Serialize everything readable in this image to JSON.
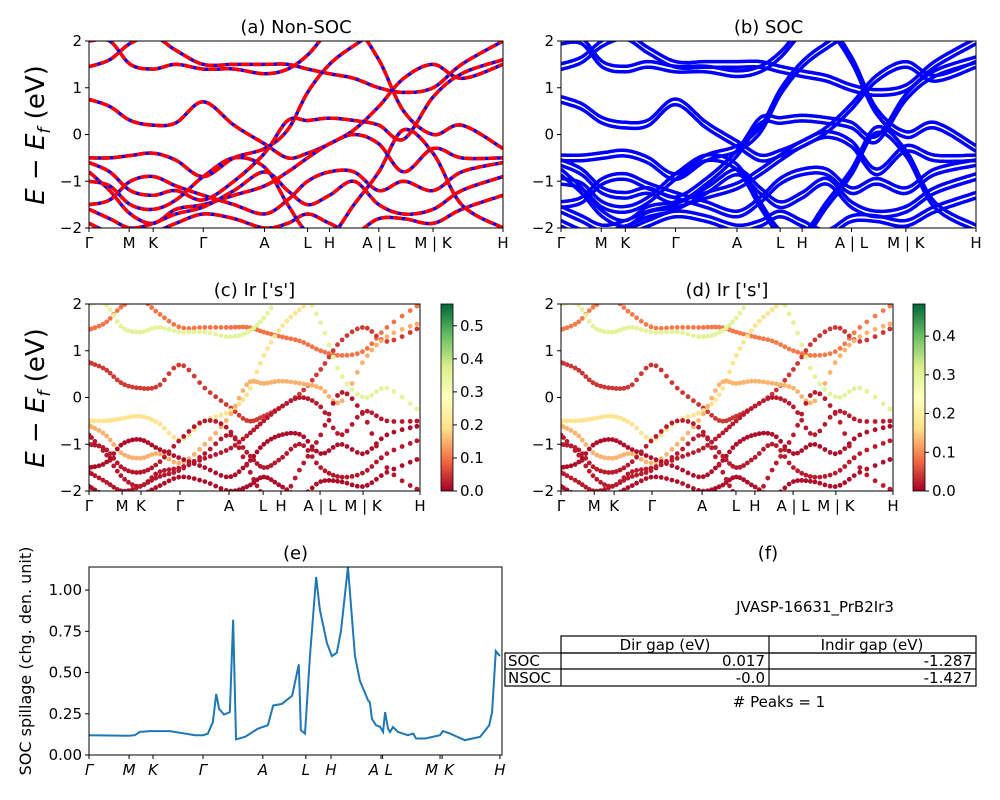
{
  "figure": {
    "ylabel_band": {
      "E": "E",
      "minus": " − ",
      "Ef": "E",
      "f": "f",
      "unit": " (eV)"
    },
    "ylabel_spillage": "SOC spillage (chg. den. unit)"
  },
  "colors": {
    "non_soc_solid": "#0000ff",
    "non_soc_dash": "#ff0000",
    "soc": "#0000ff",
    "spillage": "#1f77b4",
    "colormap": [
      "#a50026",
      "#f46d43",
      "#fee08b",
      "#ffffbf",
      "#d9ef8b",
      "#66bd63",
      "#006837"
    ]
  },
  "chart_data": [
    {
      "type": "line",
      "title": "(a) Non-SOC",
      "ylim": [
        -2,
        2
      ],
      "yticks": [
        "2",
        "1",
        "0",
        "−1",
        "−2"
      ],
      "ytick_values": [
        2,
        1,
        0,
        -1,
        -2
      ],
      "xticks": [
        "Γ",
        "M",
        "K",
        "Γ",
        "A",
        "L",
        "H",
        "A | L",
        "M | K",
        "H"
      ],
      "xtick_positions": [
        0,
        0.097,
        0.155,
        0.276,
        0.424,
        0.528,
        0.581,
        0.7,
        0.831,
        1.0
      ],
      "k": [
        0,
        0.05,
        0.1,
        0.155,
        0.21,
        0.276,
        0.35,
        0.424,
        0.48,
        0.528,
        0.581,
        0.64,
        0.7,
        0.76,
        0.831,
        0.9,
        1.0
      ],
      "series": [
        {
          "values": [
            1.45,
            1.6,
            1.95,
            2.1,
            1.8,
            1.5,
            1.5,
            1.5,
            1.5,
            1.4,
            1.3,
            1.2,
            1.0,
            0.9,
            1.0,
            1.5,
            2.0
          ]
        },
        {
          "values": [
            0.75,
            0.6,
            0.3,
            0.2,
            0.25,
            0.7,
            0.2,
            -0.2,
            -0.5,
            -0.4,
            -0.2,
            0.1,
            0.6,
            1.2,
            1.5,
            1.2,
            1.5
          ]
        },
        {
          "values": [
            -0.5,
            -0.5,
            -0.45,
            -0.4,
            -0.55,
            -0.9,
            -0.5,
            -0.3,
            0.1,
            0.9,
            1.5,
            1.9,
            2.2,
            2.2,
            2.2,
            2.2,
            2.2
          ]
        },
        {
          "values": [
            -0.6,
            -0.8,
            -1.2,
            -1.3,
            -1.2,
            -1.4,
            -1.0,
            -0.4,
            0.3,
            0.3,
            0.35,
            0.3,
            0.2,
            -0.1,
            0.8,
            1.3,
            1.6
          ]
        },
        {
          "values": [
            -0.8,
            -1.2,
            -1.7,
            -1.9,
            -1.6,
            -1.5,
            -1.3,
            -1.1,
            -0.8,
            -0.5,
            -0.2,
            0.0,
            -0.2,
            -0.8,
            -0.3,
            -0.5,
            -0.5
          ]
        },
        {
          "values": [
            -1.5,
            -1.4,
            -1.0,
            -0.9,
            -1.1,
            -1.3,
            -1.5,
            -1.7,
            -1.4,
            -1.0,
            -0.8,
            -0.8,
            -1.2,
            -1.0,
            -1.2,
            -0.8,
            -0.6
          ]
        },
        {
          "values": [
            -1.6,
            -1.8,
            -2.0,
            -1.9,
            -1.7,
            -1.55,
            -1.2,
            -0.8,
            -1.2,
            -1.5,
            -1.3,
            -1.0,
            -1.5,
            -1.7,
            -1.6,
            -1.2,
            -0.9
          ]
        },
        {
          "values": [
            -1.9,
            -2.1,
            -2.2,
            -2.1,
            -1.9,
            -1.7,
            -1.8,
            -2.0,
            -1.9,
            -1.7,
            -1.9,
            -2.1,
            -1.8,
            -1.8,
            -1.9,
            -1.6,
            -1.3
          ]
        },
        {
          "values": [
            2.0,
            2.0,
            1.5,
            1.4,
            1.5,
            1.4,
            1.4,
            1.3,
            1.4,
            1.7,
            2.2,
            2.3,
            1.6,
            0.5,
            0.0,
            0.2,
            -0.3
          ]
        },
        {
          "values": [
            -1.0,
            -1.1,
            -1.5,
            -1.6,
            -1.4,
            -0.9,
            -0.5,
            -0.7,
            -1.5,
            -2.1,
            -2.2,
            -1.5,
            -0.8,
            0.1,
            -0.4,
            -1.5,
            -2.0
          ]
        }
      ]
    },
    {
      "type": "line",
      "title": "(b) SOC",
      "ylim": [
        -2,
        2
      ],
      "yticks": [
        "2",
        "1",
        "0",
        "−1",
        "−2"
      ],
      "ytick_values": [
        2,
        1,
        0,
        -1,
        -2
      ],
      "xticks": [
        "Γ",
        "M",
        "K",
        "Γ",
        "A",
        "L",
        "H",
        "A | L",
        "M | K",
        "H"
      ],
      "xtick_positions": [
        0,
        0.097,
        0.155,
        0.276,
        0.424,
        0.528,
        0.581,
        0.7,
        0.831,
        1.0
      ],
      "soc_splitting_eV": 0.06
    },
    {
      "type": "scatter",
      "title": "(c)  Ir ['s']",
      "ylim": [
        -2,
        2
      ],
      "yticks": [
        "2",
        "1",
        "0",
        "−1",
        "−2"
      ],
      "ytick_values": [
        2,
        1,
        0,
        -1,
        -2
      ],
      "xticks": [
        "Γ",
        "M",
        "K",
        "Γ",
        "A",
        "L",
        "H",
        "A | L",
        "M | K",
        "H"
      ],
      "xtick_positions": [
        0,
        0.1,
        0.157,
        0.275,
        0.423,
        0.526,
        0.58,
        0.698,
        0.828,
        1.0
      ],
      "band_weights": [
        0.1,
        0.05,
        0.2,
        0.15,
        0.02,
        0.01,
        0.02,
        0.01,
        0.35,
        0.02
      ],
      "colorbar": {
        "range": [
          0,
          0.566
        ],
        "ticks": [
          "0.0",
          "0.1",
          "0.2",
          "0.3",
          "0.4",
          "0.5"
        ],
        "tick_values": [
          0,
          0.1,
          0.2,
          0.3,
          0.4,
          0.5
        ]
      }
    },
    {
      "type": "scatter",
      "title": "(d) Ir ['s']",
      "ylim": [
        -2,
        2
      ],
      "yticks": [
        "2",
        "1",
        "0",
        "−1",
        "−2"
      ],
      "ytick_values": [
        2,
        1,
        0,
        -1,
        -2
      ],
      "xticks": [
        "Γ",
        "M",
        "K",
        "Γ",
        "A",
        "L",
        "H",
        "A | L",
        "M | K",
        "H"
      ],
      "xtick_positions": [
        0,
        0.1,
        0.16,
        0.274,
        0.425,
        0.527,
        0.584,
        0.699,
        0.828,
        1.0
      ],
      "band_weights": [
        0.09,
        0.04,
        0.17,
        0.13,
        0.02,
        0.01,
        0.02,
        0.01,
        0.3,
        0.02
      ],
      "colorbar": {
        "range": [
          0,
          0.483
        ],
        "ticks": [
          "0.0",
          "0.1",
          "0.2",
          "0.3",
          "0.4"
        ],
        "tick_values": [
          0,
          0.1,
          0.2,
          0.3,
          0.4
        ]
      }
    },
    {
      "type": "line",
      "title": "(e)",
      "ylabel": "SOC spillage (chg. den. unit)",
      "ylim": [
        0,
        1.14
      ],
      "yticks": [
        "0.00",
        "0.25",
        "0.50",
        "0.75",
        "1.00"
      ],
      "ytick_values": [
        0,
        0.25,
        0.5,
        0.75,
        1.0
      ],
      "xticks": [
        "Γ",
        "M",
        "K",
        "Γ",
        "A",
        "L",
        "H",
        "A",
        "L",
        "M",
        "K",
        "H"
      ],
      "xtick_positions": [
        0,
        0.097,
        0.155,
        0.276,
        0.421,
        0.525,
        0.586,
        0.707,
        0.711,
        0.85,
        0.855,
        0.995
      ],
      "x": [
        0,
        0.097,
        0.111,
        0.123,
        0.148,
        0.196,
        0.232,
        0.257,
        0.276,
        0.288,
        0.3,
        0.308,
        0.315,
        0.327,
        0.341,
        0.349,
        0.356,
        0.378,
        0.409,
        0.421,
        0.433,
        0.446,
        0.467,
        0.492,
        0.508,
        0.513,
        0.523,
        0.535,
        0.55,
        0.559,
        0.576,
        0.588,
        0.6,
        0.61,
        0.627,
        0.644,
        0.656,
        0.676,
        0.68,
        0.685,
        0.695,
        0.705,
        0.712,
        0.717,
        0.724,
        0.729,
        0.736,
        0.748,
        0.772,
        0.785,
        0.792,
        0.814,
        0.85,
        0.857,
        0.874,
        0.91,
        0.947,
        0.969,
        0.976,
        0.985,
        0.995
      ],
      "y": [
        0.12,
        0.117,
        0.12,
        0.14,
        0.145,
        0.145,
        0.13,
        0.12,
        0.12,
        0.13,
        0.2,
        0.37,
        0.28,
        0.245,
        0.26,
        0.82,
        0.095,
        0.11,
        0.16,
        0.17,
        0.18,
        0.3,
        0.31,
        0.36,
        0.55,
        0.15,
        0.13,
        0.6,
        1.08,
        0.88,
        0.68,
        0.6,
        0.62,
        0.75,
        1.14,
        0.6,
        0.45,
        0.33,
        0.32,
        0.22,
        0.18,
        0.17,
        0.14,
        0.26,
        0.16,
        0.14,
        0.17,
        0.14,
        0.12,
        0.13,
        0.1,
        0.1,
        0.12,
        0.145,
        0.13,
        0.09,
        0.11,
        0.18,
        0.26,
        0.63,
        0.6
      ]
    },
    {
      "type": "table",
      "title": "(f)",
      "subtitle": "JVASP-16631_PrB2Ir3",
      "columns": [
        "Dir gap (eV)",
        "Indir gap (eV)"
      ],
      "rows": [
        {
          "label": "SOC",
          "values": [
            "0.017",
            "-1.287"
          ]
        },
        {
          "label": "NSOC",
          "values": [
            "-0.0",
            "-1.427"
          ]
        }
      ],
      "footer": "# Peaks = 1"
    }
  ]
}
